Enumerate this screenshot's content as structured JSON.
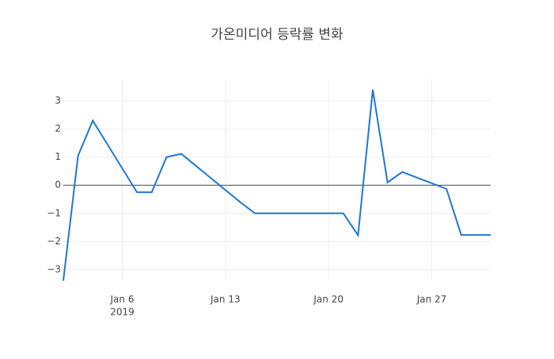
{
  "chart_data": {
    "type": "line",
    "title": "가온미디어 등락률 변화",
    "x": [
      "2019-01-02",
      "2019-01-03",
      "2019-01-04",
      "2019-01-07",
      "2019-01-08",
      "2019-01-09",
      "2019-01-10",
      "2019-01-14",
      "2019-01-15",
      "2019-01-16",
      "2019-01-17",
      "2019-01-18",
      "2019-01-21",
      "2019-01-22",
      "2019-01-23",
      "2019-01-24",
      "2019-01-25",
      "2019-01-28",
      "2019-01-29",
      "2019-01-30",
      "2019-01-31"
    ],
    "series": [
      {
        "name": "등락률",
        "color": "#1f77d4",
        "values": [
          -3.4,
          1.05,
          2.3,
          -0.25,
          -0.25,
          1.0,
          1.12,
          -0.6,
          -1.0,
          -1.0,
          -1.0,
          -1.0,
          -1.0,
          -1.78,
          3.4,
          0.1,
          0.47,
          -0.13,
          -1.77,
          -1.77,
          -1.77
        ]
      }
    ],
    "xlim": [
      "2019-01-02",
      "2019-01-31"
    ],
    "xticks": [
      {
        "value": "2019-01-06",
        "label": "Jan 6"
      },
      {
        "value": "2019-01-13",
        "label": "Jan 13"
      },
      {
        "value": "2019-01-20",
        "label": "Jan 20"
      },
      {
        "value": "2019-01-27",
        "label": "Jan 27"
      }
    ],
    "xtick_year": "2019",
    "ylim": [
      -3.4,
      3.78
    ],
    "yticks": [
      {
        "value": -3,
        "label": "−3"
      },
      {
        "value": -2,
        "label": "−2"
      },
      {
        "value": -1,
        "label": "−1"
      },
      0,
      1,
      2,
      3
    ],
    "grid": true
  }
}
